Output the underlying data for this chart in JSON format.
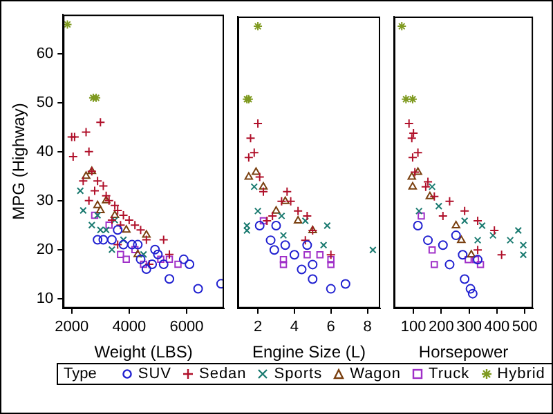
{
  "chart_data": [
    {
      "type": "scatter",
      "xlabel": "Weight (LBS)",
      "ylabel": "MPG (Highway)",
      "legend_title": "Type",
      "legend": "bottom",
      "xlim": [
        1700,
        7300
      ],
      "xticks": [
        2000,
        4000,
        6000
      ],
      "ylim": [
        8,
        68
      ],
      "yticks": [
        10,
        20,
        30,
        40,
        50,
        60
      ],
      "series": [
        {
          "name": "SUV",
          "color": "#2020d0",
          "marker": "circle",
          "x": [
            2900,
            3100,
            3400,
            3800,
            4100,
            4300,
            4600,
            4800,
            4900,
            5000,
            5200,
            5400,
            5900,
            6100,
            6400,
            7200,
            4400,
            3600
          ],
          "values": [
            22,
            22,
            22,
            21,
            21,
            21,
            16,
            17,
            20,
            19,
            17,
            14,
            18,
            17,
            12,
            13,
            18,
            24
          ]
        },
        {
          "name": "Sedan",
          "color": "#b0102a",
          "marker": "cross",
          "x": [
            2000,
            2100,
            2050,
            2500,
            3000,
            2600,
            2400,
            2700,
            2900,
            3100,
            3200,
            3300,
            2800,
            3500,
            3600,
            3800,
            3400,
            3700,
            4000,
            4200,
            4400,
            4600,
            5200,
            5400,
            3600,
            4700,
            2600
          ],
          "values": [
            43,
            43,
            39,
            44,
            46,
            40,
            34,
            36,
            34,
            33,
            31,
            30,
            32,
            29,
            28,
            27,
            26,
            25,
            26,
            25,
            24,
            22,
            22,
            19,
            21,
            17,
            30
          ]
        },
        {
          "name": "Sports",
          "color": "#1a7a70",
          "marker": "x",
          "x": [
            2300,
            2400,
            2700,
            3000,
            3200,
            3400,
            3500,
            3800,
            4500,
            2900
          ],
          "values": [
            32,
            28,
            25,
            24,
            24,
            20,
            26,
            22,
            19,
            27
          ]
        },
        {
          "name": "Wagon",
          "color": "#7a4010",
          "marker": "triangle",
          "x": [
            2500,
            2700,
            2900,
            3200,
            3500,
            3900,
            4300,
            4600,
            3000
          ],
          "values": [
            35,
            36,
            29,
            30,
            27,
            24,
            19,
            23,
            28
          ]
        },
        {
          "name": "Truck",
          "color": "#a030c8",
          "marker": "square",
          "x": [
            2800,
            3300,
            3700,
            3900,
            4500,
            5100,
            5700,
            5400,
            4200
          ],
          "values": [
            27,
            25,
            19,
            18,
            17,
            18,
            17,
            18,
            20
          ]
        },
        {
          "name": "Hybrid",
          "color": "#7f9a20",
          "x": [
            1850,
            2750,
            2850
          ],
          "values": [
            66,
            51,
            51
          ]
        }
      ]
    },
    {
      "type": "scatter",
      "xlabel": "Engine Size (L)",
      "tick_labels": "x",
      "xlim": [
        0.9,
        8.7
      ],
      "xticks": [
        2,
        4,
        6,
        8
      ],
      "ylim": [
        8,
        68
      ],
      "series": [
        {
          "color": "#2020d0",
          "marker": "circle",
          "x": [
            2.1,
            2.7,
            2.9,
            3.5,
            4.0,
            4.4,
            5.0,
            5.0,
            6.0,
            6.8,
            4.7,
            3.0
          ],
          "values": [
            25,
            22,
            20,
            21,
            19,
            16,
            17,
            14,
            12,
            13,
            21,
            25
          ]
        },
        {
          "color": "#b0102a",
          "marker": "cross",
          "x": [
            2.0,
            1.6,
            1.8,
            1.5,
            2.1,
            2.3,
            3.3,
            3.6,
            3.8,
            4.2,
            4.7,
            5.0,
            6.0,
            4.6,
            2.8,
            2.5
          ],
          "values": [
            46,
            43,
            40,
            39,
            35,
            32,
            30,
            32,
            30,
            28,
            27,
            24,
            19,
            22,
            27,
            26
          ]
        },
        {
          "color": "#1a7a70",
          "marker": "x",
          "x": [
            1.4,
            1.4,
            1.8,
            2.0,
            3.3,
            4.6,
            5.8,
            5.6,
            8.3,
            3.4
          ],
          "values": [
            25,
            24,
            33,
            28,
            27,
            26,
            25,
            21,
            20,
            23
          ]
        },
        {
          "color": "#7a4010",
          "marker": "triangle",
          "x": [
            1.5,
            1.9,
            2.3,
            3.5,
            4.2,
            5.0,
            3.0
          ],
          "values": [
            35,
            36,
            33,
            30,
            26,
            24,
            28
          ]
        },
        {
          "color": "#a030c8",
          "marker": "square",
          "x": [
            2.3,
            3.4,
            3.4,
            4.7,
            5.4,
            6.0,
            6.0
          ],
          "values": [
            26,
            18,
            17,
            19,
            19,
            18,
            17
          ]
        },
        {
          "color": "#7f9a20",
          "x": [
            2.0,
            1.4,
            1.5
          ],
          "values": [
            66,
            51,
            51
          ]
        }
      ]
    },
    {
      "type": "scatter",
      "xlabel": "Horsepower",
      "tick_labels": "x",
      "xlim": [
        30,
        530
      ],
      "xticks": [
        100,
        200,
        300,
        400,
        500
      ],
      "ylim": [
        8,
        68
      ],
      "series": [
        {
          "color": "#2020d0",
          "marker": "circle",
          "x": [
            116,
            152,
            206,
            230,
            277,
            284,
            305,
            313,
            331,
            253
          ],
          "values": [
            25,
            22,
            21,
            17,
            19,
            14,
            12,
            11,
            18,
            23
          ]
        },
        {
          "color": "#b0102a",
          "marker": "cross",
          "x": [
            84,
            100,
            94,
            116,
            97,
            105,
            152,
            175,
            230,
            284,
            331,
            391,
            417,
            331,
            206,
            144
          ],
          "values": [
            46,
            44,
            43,
            40,
            39,
            36,
            34,
            31,
            30,
            28,
            26,
            24,
            19,
            20,
            27,
            33
          ]
        },
        {
          "color": "#1a7a70",
          "marker": "x",
          "x": [
            167,
            120,
            191,
            284,
            347,
            386,
            448,
            477,
            495,
            495,
            331
          ],
          "values": [
            33,
            28,
            29,
            26,
            25,
            23,
            22,
            24,
            21,
            19,
            22
          ]
        },
        {
          "color": "#7a4010",
          "marker": "triangle",
          "x": [
            94,
            116,
            97,
            159,
            253,
            272,
            308
          ],
          "values": [
            35,
            36,
            33,
            31,
            25,
            22,
            19
          ]
        },
        {
          "color": "#a030c8",
          "marker": "square",
          "x": [
            128,
            167,
            175,
            297,
            341,
            323
          ],
          "values": [
            27,
            20,
            17,
            18,
            17,
            18
          ]
        },
        {
          "color": "#7f9a20",
          "x": [
            58,
            73,
            97
          ],
          "values": [
            66,
            51,
            51
          ]
        }
      ]
    }
  ]
}
